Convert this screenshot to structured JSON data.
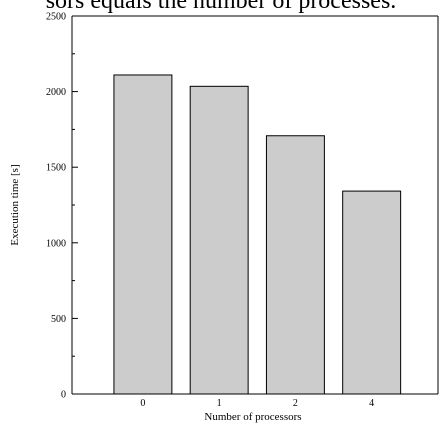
{
  "caption": "sors equals the number of processes.",
  "chart_data": {
    "type": "bar",
    "categories": [
      "0",
      "1",
      "2",
      "4"
    ],
    "values": [
      2110,
      2035,
      1708,
      1342
    ],
    "xlabel": "Number of processors",
    "ylabel": "Execution time [s]",
    "ylim": [
      0,
      2500
    ],
    "yticks": [
      0,
      500,
      1000,
      1500,
      2000,
      2500
    ],
    "yminor_step": 250,
    "grid": false,
    "bar_color": "#cccccc",
    "edge_color": "#000000"
  }
}
